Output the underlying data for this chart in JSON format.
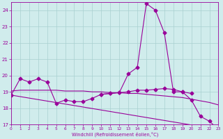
{
  "xlabel": "Windchill (Refroidissement éolien,°C)",
  "background_color": "#d0ecec",
  "grid_color": "#a8d0d0",
  "line_color": "#990099",
  "ylim": [
    17,
    24.5
  ],
  "xlim": [
    0,
    23
  ],
  "yticks": [
    17,
    18,
    19,
    20,
    21,
    22,
    23,
    24
  ],
  "xticks": [
    0,
    1,
    2,
    3,
    4,
    5,
    6,
    7,
    8,
    9,
    10,
    11,
    12,
    13,
    14,
    15,
    16,
    17,
    18,
    19,
    20,
    21,
    22,
    23
  ],
  "curve_peak": {
    "x": [
      10,
      11,
      12,
      13,
      14,
      15,
      16,
      17,
      18,
      19,
      20,
      21,
      22,
      23
    ],
    "y": [
      18.85,
      18.9,
      18.95,
      20.1,
      20.5,
      24.4,
      24.0,
      22.6,
      19.0,
      19.0,
      18.5,
      17.5,
      17.2,
      16.7
    ]
  },
  "curve_zigzag": {
    "x": [
      0,
      1,
      2,
      3,
      4,
      5,
      6,
      7,
      8,
      9,
      10,
      11,
      12,
      13,
      14,
      15,
      16,
      17,
      18,
      19,
      20
    ],
    "y": [
      18.8,
      19.8,
      19.6,
      19.8,
      19.6,
      18.3,
      18.5,
      18.4,
      18.4,
      18.6,
      18.85,
      18.9,
      18.95,
      19.0,
      19.1,
      19.1,
      19.15,
      19.2,
      19.15,
      19.0,
      18.9
    ]
  },
  "curve_flat1": {
    "x": [
      0,
      1,
      2,
      3,
      4,
      5,
      6,
      7,
      8,
      9,
      10,
      11,
      12,
      13,
      14,
      15,
      16,
      17,
      18,
      19,
      20,
      21,
      22,
      23
    ],
    "y": [
      19.05,
      19.1,
      19.1,
      19.1,
      19.1,
      19.1,
      19.05,
      19.05,
      19.05,
      19.0,
      19.0,
      18.95,
      18.95,
      18.9,
      18.9,
      18.85,
      18.8,
      18.75,
      18.7,
      18.65,
      18.55,
      18.45,
      18.35,
      18.2
    ]
  },
  "curve_diagonal": {
    "x": [
      0,
      23
    ],
    "y": [
      18.8,
      16.7
    ]
  }
}
